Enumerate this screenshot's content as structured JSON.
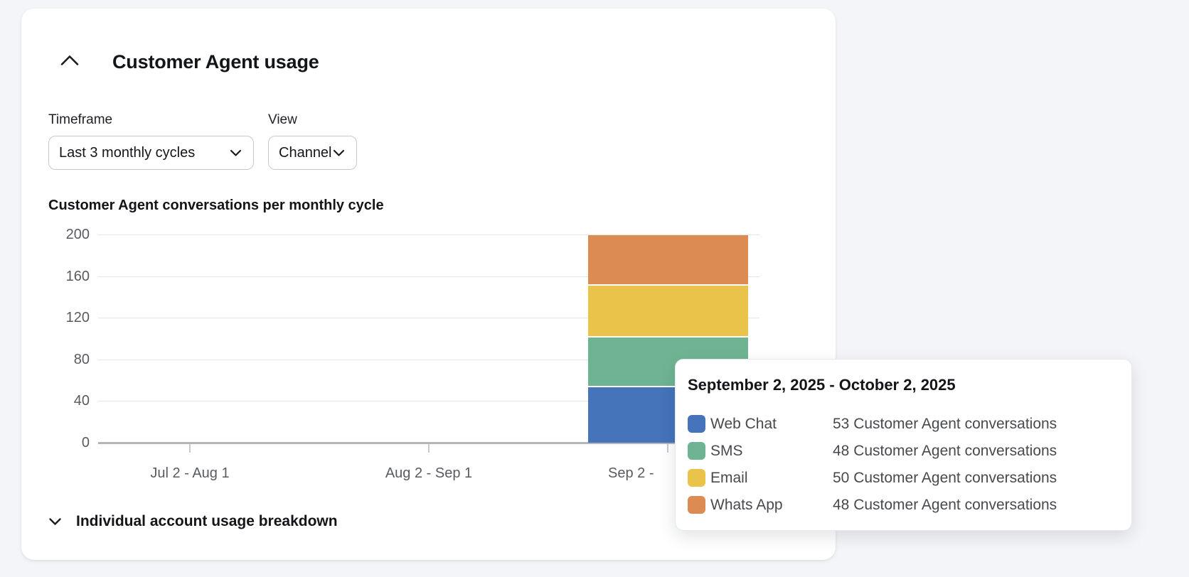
{
  "page": {
    "background_color": "#f4f5f8"
  },
  "panel": {
    "title": "Customer Agent usage",
    "controls": {
      "timeframe": {
        "label": "Timeframe",
        "value": "Last 3 monthly cycles"
      },
      "view": {
        "label": "View",
        "value": "Channel"
      }
    },
    "footer": {
      "label": "Individual account usage breakdown"
    }
  },
  "chart_data": {
    "type": "bar",
    "stacked": true,
    "title": "Customer Agent conversations per monthly cycle",
    "categories": [
      "Jul 2 - Aug 1",
      "Aug 2 - Sep 1",
      "Sep 2 -"
    ],
    "series": [
      {
        "name": "Web Chat",
        "color": "#4574BA",
        "values": [
          0,
          0,
          53
        ]
      },
      {
        "name": "SMS",
        "color": "#6FB492",
        "values": [
          0,
          0,
          48
        ]
      },
      {
        "name": "Email",
        "color": "#EAC44A",
        "values": [
          0,
          0,
          50
        ]
      },
      {
        "name": "Whats App",
        "color": "#DC8C52",
        "values": [
          0,
          0,
          48
        ]
      }
    ],
    "xlabel": "",
    "ylabel": "",
    "ylim": [
      0,
      200
    ],
    "yticks": [
      0,
      40,
      80,
      120,
      160,
      200
    ],
    "grid": true,
    "legend_position": "in-tooltip"
  },
  "tooltip": {
    "title": "September 2, 2025 - October 2, 2025",
    "rows": [
      {
        "color": "#4574BA",
        "label": "Web Chat",
        "value": "53 Customer Agent conversations"
      },
      {
        "color": "#6FB492",
        "label": "SMS",
        "value": "48 Customer Agent conversations"
      },
      {
        "color": "#EAC44A",
        "label": "Email",
        "value": "50 Customer Agent conversations"
      },
      {
        "color": "#DC8C52",
        "label": "Whats App",
        "value": "48 Customer Agent conversations"
      }
    ]
  }
}
